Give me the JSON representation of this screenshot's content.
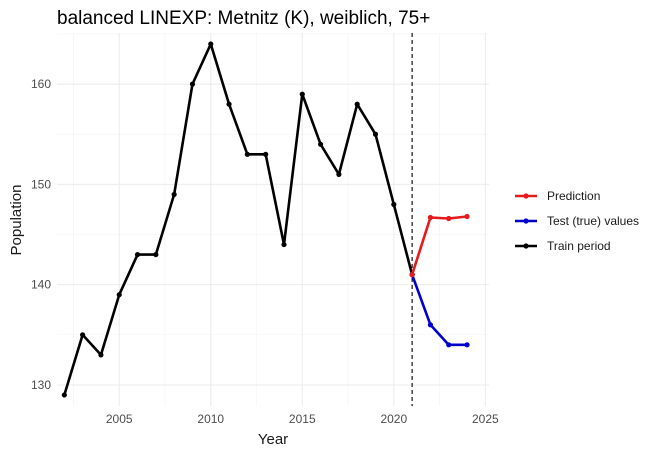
{
  "chart_data": {
    "type": "line",
    "title": "balanced LINEXP: Metnitz (K), weiblich, 75+",
    "xlabel": "Year",
    "ylabel": "Population",
    "xlim": [
      2001.6,
      2025.2
    ],
    "ylim": [
      127.9,
      165.1
    ],
    "x_ticks": [
      2005,
      2010,
      2015,
      2020,
      2025
    ],
    "y_ticks": [
      130,
      140,
      150,
      160
    ],
    "grid": true,
    "vline": {
      "x": 2021,
      "style": "dashed",
      "color": "#000000"
    },
    "legend_position": "right",
    "series": [
      {
        "name": "Prediction",
        "color": "#e41a1c",
        "x": [
          2021,
          2022,
          2023,
          2024
        ],
        "y": [
          141,
          146.7,
          146.6,
          146.8
        ]
      },
      {
        "name": "Test (true) values",
        "color": "#0000cc",
        "x": [
          2021,
          2022,
          2023,
          2024
        ],
        "y": [
          141,
          136,
          134,
          134
        ]
      },
      {
        "name": "Train period",
        "color": "#000000",
        "x": [
          2002,
          2003,
          2004,
          2005,
          2006,
          2007,
          2008,
          2009,
          2010,
          2011,
          2012,
          2013,
          2014,
          2015,
          2016,
          2017,
          2018,
          2019,
          2020,
          2021
        ],
        "y": [
          129,
          135,
          133,
          139,
          143,
          143,
          149,
          160,
          164,
          158,
          153,
          153,
          144,
          159,
          154,
          151,
          158,
          155,
          148,
          141
        ]
      }
    ]
  }
}
